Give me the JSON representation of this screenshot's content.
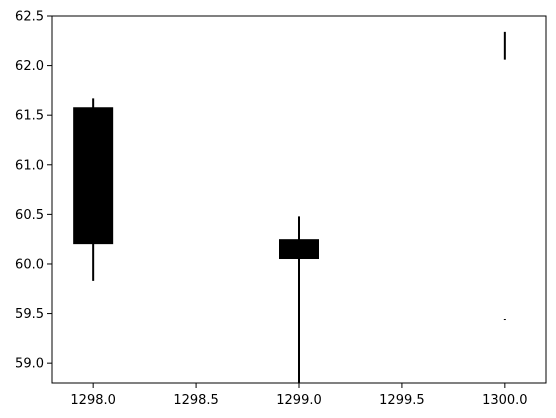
{
  "chart_data": {
    "type": "candlestick",
    "title": "",
    "xlabel": "",
    "ylabel": "",
    "xlim": [
      1297.8,
      1300.2
    ],
    "ylim": [
      58.8,
      62.5
    ],
    "grid": false,
    "legend": "none",
    "xticks": [
      1298.0,
      1298.5,
      1299.0,
      1299.5,
      1300.0
    ],
    "xtick_labels": [
      "1298.0",
      "1298.5",
      "1299.0",
      "1299.5",
      "1300.0"
    ],
    "yticks": [
      59.0,
      59.5,
      60.0,
      60.5,
      61.0,
      61.5,
      62.0,
      62.5
    ],
    "ytick_labels": [
      "59.0",
      "59.5",
      "60.0",
      "60.5",
      "61.0",
      "61.5",
      "62.0",
      "62.5"
    ],
    "colors": {
      "candle": "#000000",
      "axes": "#000000",
      "background": "#ffffff"
    },
    "candles": [
      {
        "x": 1298.0,
        "body_low": 60.2,
        "body_high": 61.58,
        "wick_low": 59.83,
        "wick_high": 61.67
      },
      {
        "x": 1299.0,
        "body_low": 60.05,
        "body_high": 60.25,
        "wick_low": 58.8,
        "wick_high": 60.48
      },
      {
        "x": 1300.0,
        "body_low": null,
        "body_high": null,
        "wick_low": 62.06,
        "wick_high": 62.34
      }
    ],
    "markers": [
      {
        "x": 1300.0,
        "y": 59.44
      }
    ]
  }
}
